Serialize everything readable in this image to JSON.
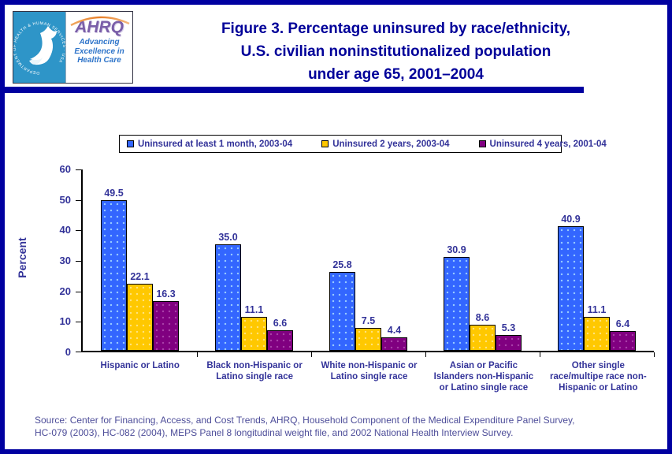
{
  "header": {
    "title_lines": [
      "Figure 3. Percentage uninsured by race/ethnicity,",
      "U.S. civilian noninstitutionalized population",
      "under age 65, 2001–2004"
    ],
    "logo": {
      "org": "AHRQ",
      "tagline_lines": [
        "Advancing",
        "Excellence in",
        "Health Care"
      ],
      "seal_ring_text": "DEPARTMENT OF HEALTH & HUMAN SERVICES · USA"
    }
  },
  "chart_data": {
    "type": "bar",
    "title": "Percentage uninsured by race/ethnicity, U.S. civilian noninstitutionalized population under age 65, 2001–2004",
    "ylabel": "Percent",
    "ylim": [
      0,
      60
    ],
    "yticks": [
      0,
      10,
      20,
      30,
      40,
      50,
      60
    ],
    "grid": false,
    "legend_position": "top",
    "categories": [
      "Hispanic or Latino",
      "Black non-Hispanic or\nLatino single race",
      "White non-Hispanic or\nLatino single race",
      "Asian or Pacific\nIslanders non-Hispanic\nor Latino single race",
      "Other single\nrace/multipe race non-\nHispanic or Latino"
    ],
    "series": [
      {
        "name": "Uninsured at least 1 month, 2003-04",
        "color": "#3366ff",
        "dot_color": "#99ccff",
        "values": [
          49.5,
          35.0,
          25.8,
          30.9,
          40.9
        ],
        "labels": [
          "49.5",
          "35.0",
          "25.8",
          "30.9",
          "40.9"
        ]
      },
      {
        "name": "Uninsured 2 years, 2003-04",
        "color": "#ffc800",
        "dot_color": "#ffe37f",
        "values": [
          22.1,
          11.1,
          7.5,
          8.6,
          11.1
        ],
        "labels": [
          "22.1",
          "11.1",
          "7.5",
          "8.6",
          "11.1"
        ]
      },
      {
        "name": "Uninsured 4 years, 2001-04",
        "color": "#800080",
        "dot_color": "#a941a9",
        "values": [
          16.3,
          6.6,
          4.4,
          5.3,
          6.4
        ],
        "labels": [
          "16.3",
          "6.6",
          "4.4",
          "5.3",
          "6.4"
        ]
      }
    ]
  },
  "footer": {
    "source_lines": [
      "Source: Center for Financing, Access, and Cost Trends, AHRQ, Household Component of the Medical Expenditure Panel Survey,",
      "HC-079 (2003), HC-082 (2004), MEPS Panel 8 longitudinal weight file, and 2002 National Health Interview Survey."
    ]
  }
}
